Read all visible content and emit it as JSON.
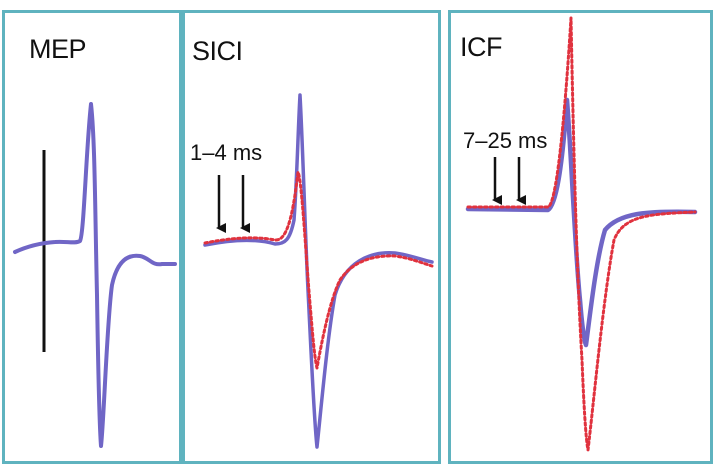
{
  "panels": [
    {
      "id": "mep",
      "label": "MEP"
    },
    {
      "id": "sici",
      "label": "SICI",
      "interval": "1–4 ms"
    },
    {
      "id": "icf",
      "label": "ICF",
      "interval": "7–25 ms"
    }
  ],
  "colors": {
    "frame": "#5fb3bf",
    "control_trace": "#7066c6",
    "conditioned_trace": "#e0323e",
    "marker": "#111111"
  }
}
